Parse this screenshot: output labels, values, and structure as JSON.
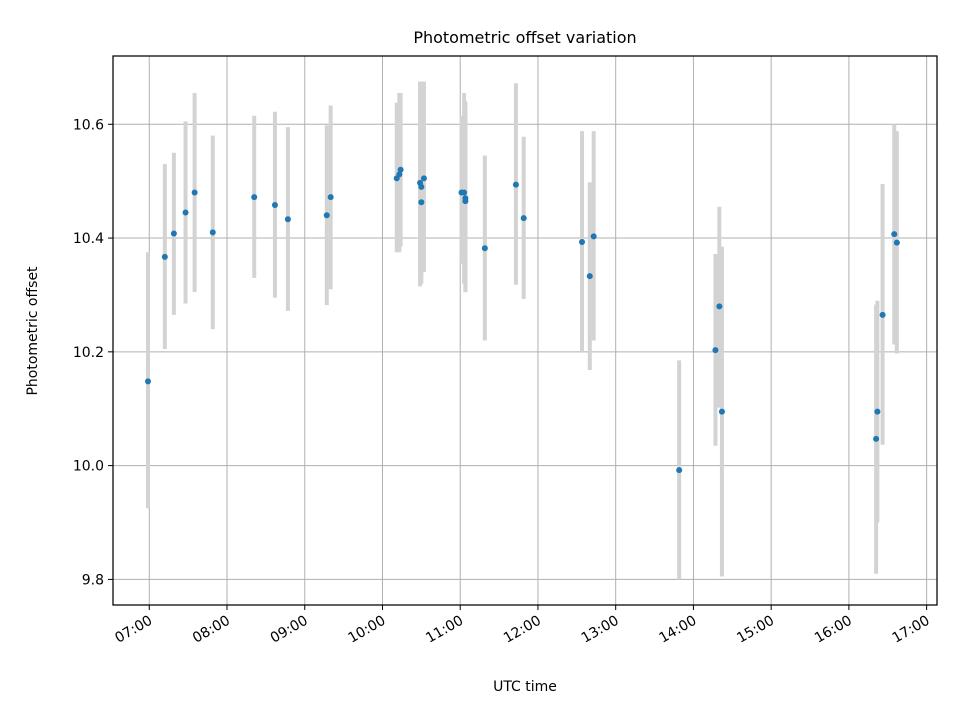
{
  "chart_data": {
    "type": "scatter",
    "title": "Photometric offset variation",
    "xlabel": "UTC time",
    "ylabel": "Photometric offset",
    "xlim": [
      "06:32",
      "17:08"
    ],
    "ylim": [
      9.755,
      10.72
    ],
    "x_ticks": [
      "07:00",
      "08:00",
      "09:00",
      "10:00",
      "11:00",
      "12:00",
      "13:00",
      "14:00",
      "15:00",
      "16:00",
      "17:00"
    ],
    "y_ticks": [
      9.8,
      10.0,
      10.2,
      10.4,
      10.6
    ],
    "y_tick_labels": [
      "9.8",
      "10.0",
      "10.2",
      "10.4",
      "10.6"
    ],
    "grid": true,
    "series": [
      {
        "marker_color": "#1f77b4",
        "errorbar_color": "#d3d3d3",
        "points": [
          {
            "x": "06:59",
            "y": 10.148,
            "ylo": 9.925,
            "yhi": 10.375
          },
          {
            "x": "07:12",
            "y": 10.367,
            "ylo": 10.205,
            "yhi": 10.53
          },
          {
            "x": "07:19",
            "y": 10.408,
            "ylo": 10.265,
            "yhi": 10.55
          },
          {
            "x": "07:28",
            "y": 10.445,
            "ylo": 10.285,
            "yhi": 10.605
          },
          {
            "x": "07:35",
            "y": 10.48,
            "ylo": 10.305,
            "yhi": 10.655
          },
          {
            "x": "07:49",
            "y": 10.41,
            "ylo": 10.24,
            "yhi": 10.58
          },
          {
            "x": "08:21",
            "y": 10.472,
            "ylo": 10.33,
            "yhi": 10.615
          },
          {
            "x": "08:37",
            "y": 10.458,
            "ylo": 10.295,
            "yhi": 10.622
          },
          {
            "x": "08:47",
            "y": 10.433,
            "ylo": 10.272,
            "yhi": 10.595
          },
          {
            "x": "09:17",
            "y": 10.44,
            "ylo": 10.282,
            "yhi": 10.598
          },
          {
            "x": "09:20",
            "y": 10.472,
            "ylo": 10.31,
            "yhi": 10.633
          },
          {
            "x": "10:11",
            "y": 10.505,
            "ylo": 10.375,
            "yhi": 10.638
          },
          {
            "x": "10:13",
            "y": 10.512,
            "ylo": 10.375,
            "yhi": 10.655
          },
          {
            "x": "10:14",
            "y": 10.52,
            "ylo": 10.385,
            "yhi": 10.655
          },
          {
            "x": "10:29",
            "y": 10.497,
            "ylo": 10.315,
            "yhi": 10.675
          },
          {
            "x": "10:30",
            "y": 10.463,
            "ylo": 10.335,
            "yhi": 10.675
          },
          {
            "x": "10:30",
            "y": 10.49,
            "ylo": 10.32,
            "yhi": 10.675
          },
          {
            "x": "10:32",
            "y": 10.505,
            "ylo": 10.34,
            "yhi": 10.675
          },
          {
            "x": "11:01",
            "y": 10.48,
            "ylo": 10.355,
            "yhi": 10.615
          },
          {
            "x": "11:03",
            "y": 10.48,
            "ylo": 10.32,
            "yhi": 10.655
          },
          {
            "x": "11:04",
            "y": 10.47,
            "ylo": 10.305,
            "yhi": 10.64
          },
          {
            "x": "11:04",
            "y": 10.465,
            "ylo": 10.305,
            "yhi": 10.63
          },
          {
            "x": "11:19",
            "y": 10.382,
            "ylo": 10.22,
            "yhi": 10.545
          },
          {
            "x": "11:43",
            "y": 10.494,
            "ylo": 10.318,
            "yhi": 10.672
          },
          {
            "x": "11:49",
            "y": 10.435,
            "ylo": 10.293,
            "yhi": 10.578
          },
          {
            "x": "12:34",
            "y": 10.393,
            "ylo": 10.2,
            "yhi": 10.588
          },
          {
            "x": "12:40",
            "y": 10.333,
            "ylo": 10.168,
            "yhi": 10.498
          },
          {
            "x": "12:43",
            "y": 10.403,
            "ylo": 10.22,
            "yhi": 10.588
          },
          {
            "x": "13:49",
            "y": 9.992,
            "ylo": 9.8,
            "yhi": 10.185
          },
          {
            "x": "14:17",
            "y": 10.203,
            "ylo": 10.035,
            "yhi": 10.372
          },
          {
            "x": "14:20",
            "y": 10.28,
            "ylo": 10.102,
            "yhi": 10.455
          },
          {
            "x": "14:22",
            "y": 10.095,
            "ylo": 9.805,
            "yhi": 10.385
          },
          {
            "x": "16:21",
            "y": 10.047,
            "ylo": 9.81,
            "yhi": 10.283
          },
          {
            "x": "16:22",
            "y": 10.095,
            "ylo": 9.9,
            "yhi": 10.29
          },
          {
            "x": "16:26",
            "y": 10.265,
            "ylo": 10.037,
            "yhi": 10.495
          },
          {
            "x": "16:35",
            "y": 10.407,
            "ylo": 10.213,
            "yhi": 10.6
          },
          {
            "x": "16:37",
            "y": 10.392,
            "ylo": 10.197,
            "yhi": 10.588
          }
        ]
      }
    ]
  }
}
